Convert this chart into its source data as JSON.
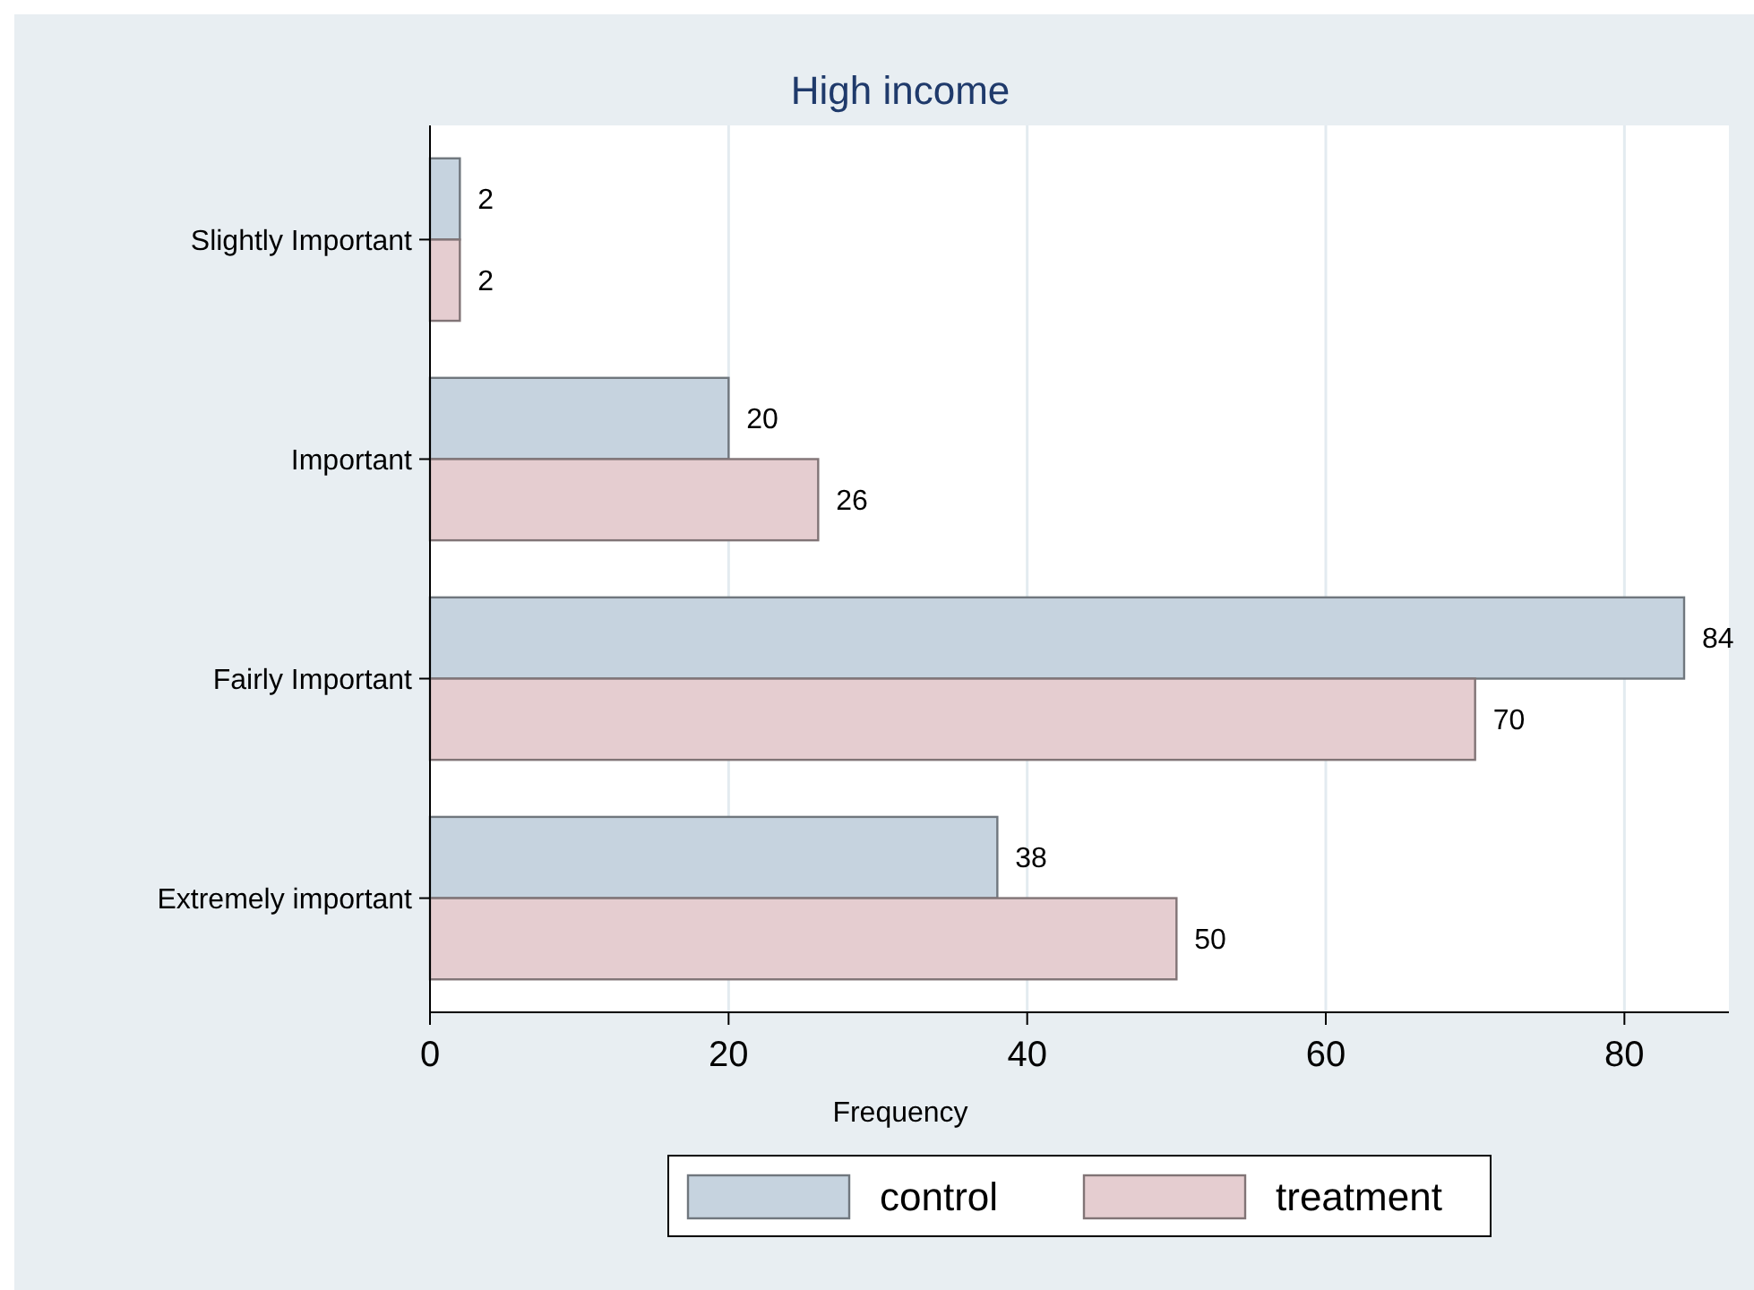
{
  "chart_data": {
    "type": "bar",
    "orientation": "horizontal",
    "title": "High income",
    "xlabel": "Frequency",
    "categories": [
      "Slightly Important",
      "Important",
      "Fairly Important",
      "Extremely important"
    ],
    "series": [
      {
        "name": "control",
        "color": "#c6d3df",
        "values": [
          2,
          20,
          84,
          38
        ]
      },
      {
        "name": "treatment",
        "color": "#e5cdd0",
        "values": [
          2,
          26,
          70,
          50
        ]
      }
    ],
    "xlim": [
      0,
      87
    ],
    "xticks": [
      0,
      20,
      40,
      60,
      80
    ],
    "grid": "x",
    "data_labels": true,
    "legend": "bottom"
  }
}
